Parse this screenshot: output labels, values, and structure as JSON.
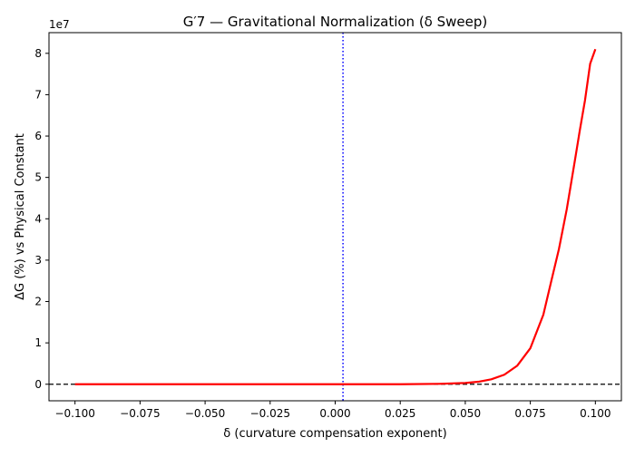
{
  "chart_data": {
    "type": "line",
    "title": "G′7 — Gravitational Normalization (δ Sweep)",
    "xlabel": "δ (curvature compensation exponent)",
    "ylabel": "ΔG (%) vs Physical Constant",
    "y_offset_label": "1e7",
    "xlim": [
      -0.11,
      0.11
    ],
    "ylim": [
      -0.4,
      8.5
    ],
    "y_scale_factor": 10000000,
    "x_ticks": [
      -0.1,
      -0.075,
      -0.05,
      -0.025,
      0.0,
      0.025,
      0.05,
      0.075,
      0.1
    ],
    "x_tick_labels": [
      "−0.100",
      "−0.075",
      "−0.050",
      "−0.025",
      "0.000",
      "0.025",
      "0.050",
      "0.075",
      "0.100"
    ],
    "y_ticks": [
      0,
      1,
      2,
      3,
      4,
      5,
      6,
      7,
      8
    ],
    "y_tick_labels": [
      "0",
      "1",
      "2",
      "3",
      "4",
      "5",
      "6",
      "7",
      "8"
    ],
    "grid": false,
    "legend": "none",
    "series": [
      {
        "color": "#ff0000",
        "x": [
          -0.1,
          -0.075,
          -0.05,
          -0.025,
          0.0,
          0.025,
          0.04,
          0.05,
          0.055,
          0.06,
          0.065,
          0.07,
          0.075,
          0.08,
          0.083,
          0.086,
          0.089,
          0.092,
          0.094,
          0.096,
          0.098,
          0.1
        ],
        "y": [
          0.0,
          0.0,
          0.0,
          0.0,
          0.0,
          0.0,
          0.01,
          0.03,
          0.06,
          0.12,
          0.23,
          0.45,
          0.87,
          1.68,
          2.48,
          3.27,
          4.23,
          5.36,
          6.13,
          6.86,
          7.75,
          8.1
        ]
      }
    ],
    "reference_lines": [
      {
        "orientation": "horizontal",
        "value": 0,
        "color": "#000000",
        "style": "dashed"
      },
      {
        "orientation": "vertical",
        "value": 0.003,
        "color": "#0000ff",
        "style": "dotted"
      }
    ]
  }
}
